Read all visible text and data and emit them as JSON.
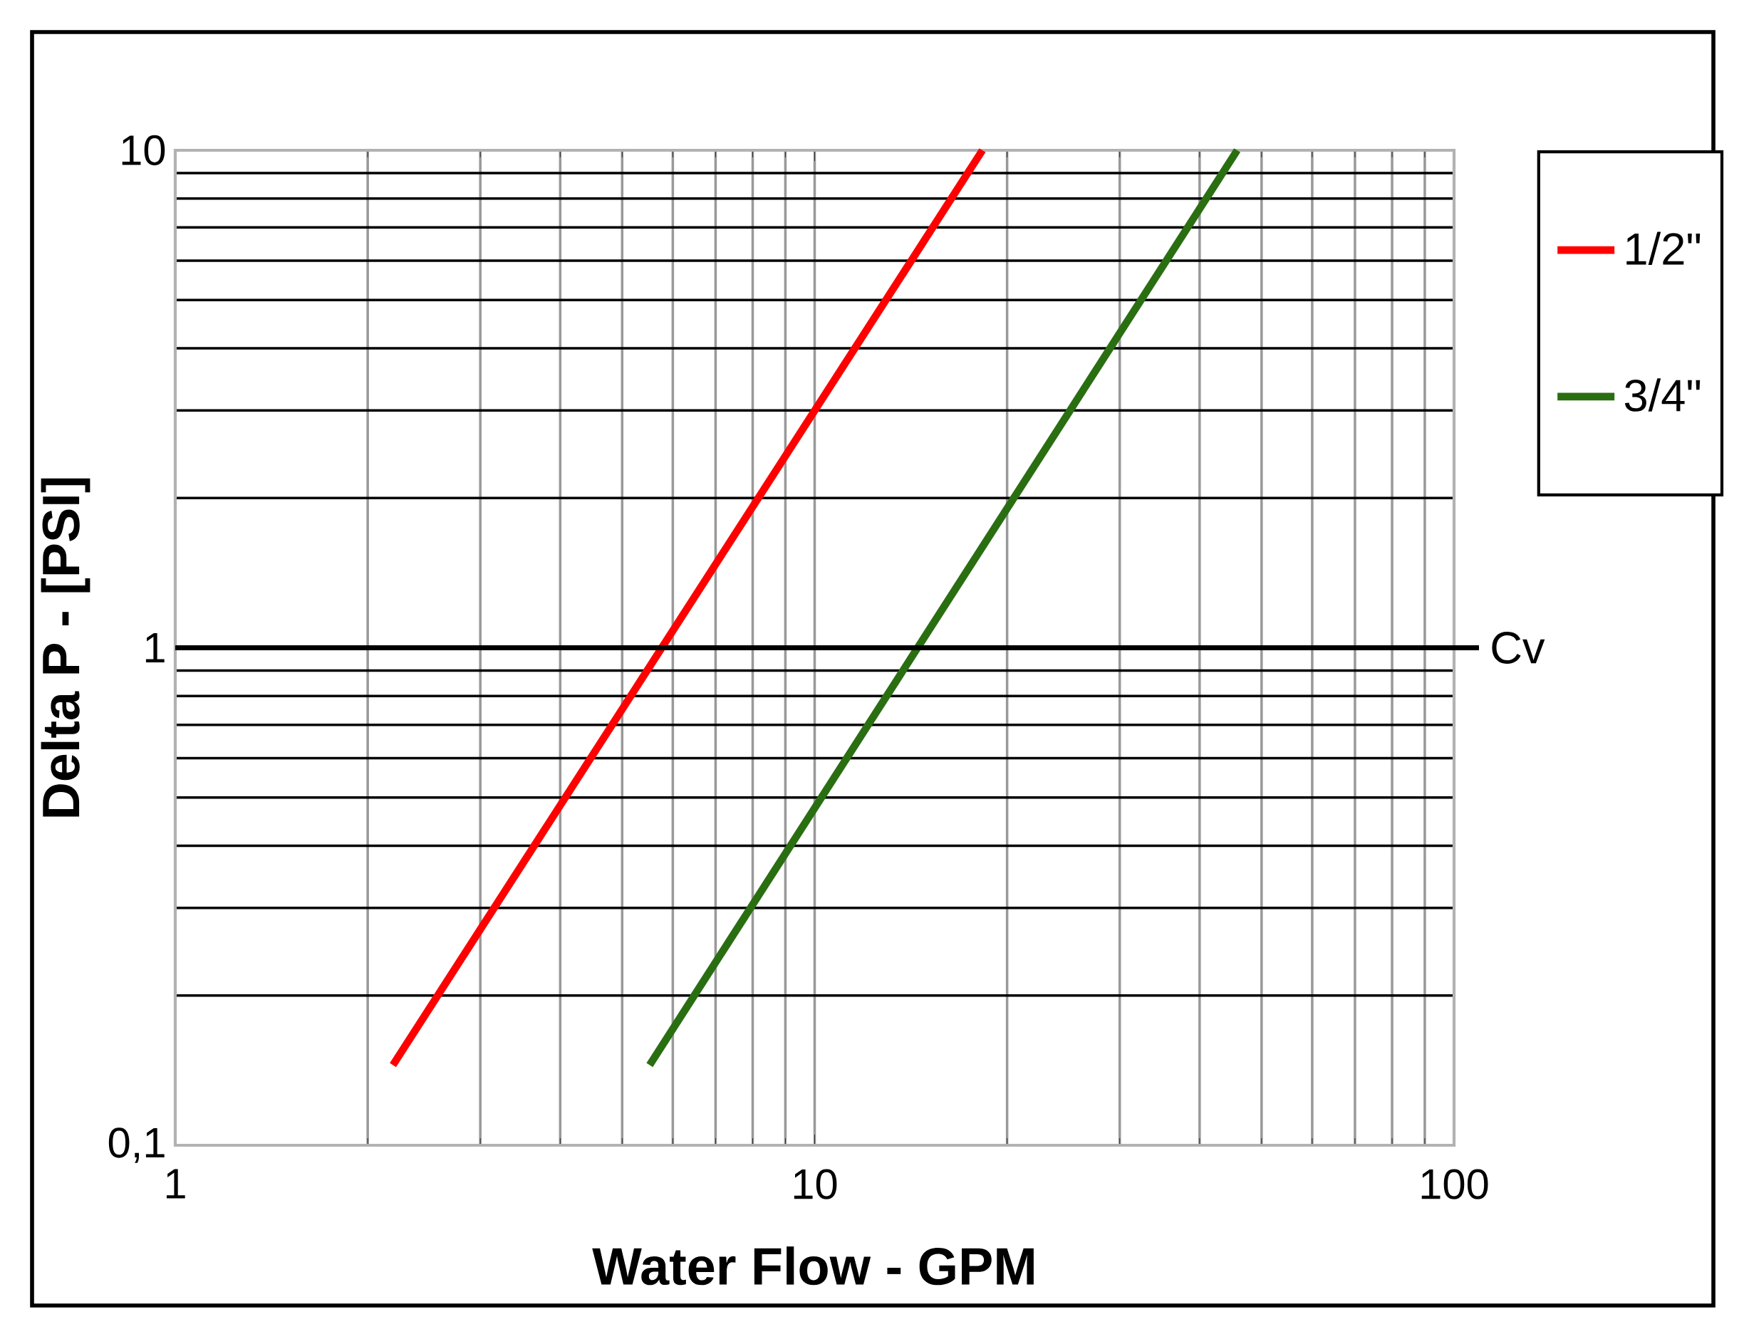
{
  "chart_data": {
    "type": "line",
    "xlabel": "Water Flow  - GPM",
    "ylabel": "Delta P - [PSI]",
    "log": "xy",
    "grid": true,
    "legend": "right",
    "line_style": "solid",
    "marker": "none",
    "xlim": [
      1,
      100
    ],
    "ylim": [
      0.1,
      10
    ],
    "xticks": [
      1,
      10,
      100
    ],
    "yticks": [
      {
        "value": 0.1,
        "label": "0,1"
      },
      1,
      10
    ],
    "series": [
      {
        "name": "1/2\"",
        "color": "#ff0000",
        "x": [
          2.19,
          18.3
        ],
        "values": [
          0.145,
          10
        ]
      },
      {
        "name": "3/4\"",
        "color": "#2a6e12",
        "x": [
          5.52,
          45.8
        ],
        "values": [
          0.145,
          10
        ]
      }
    ],
    "ref_lines": [
      {
        "axis": "y",
        "value": 1,
        "label": "Cv",
        "color": "#000000"
      }
    ]
  }
}
